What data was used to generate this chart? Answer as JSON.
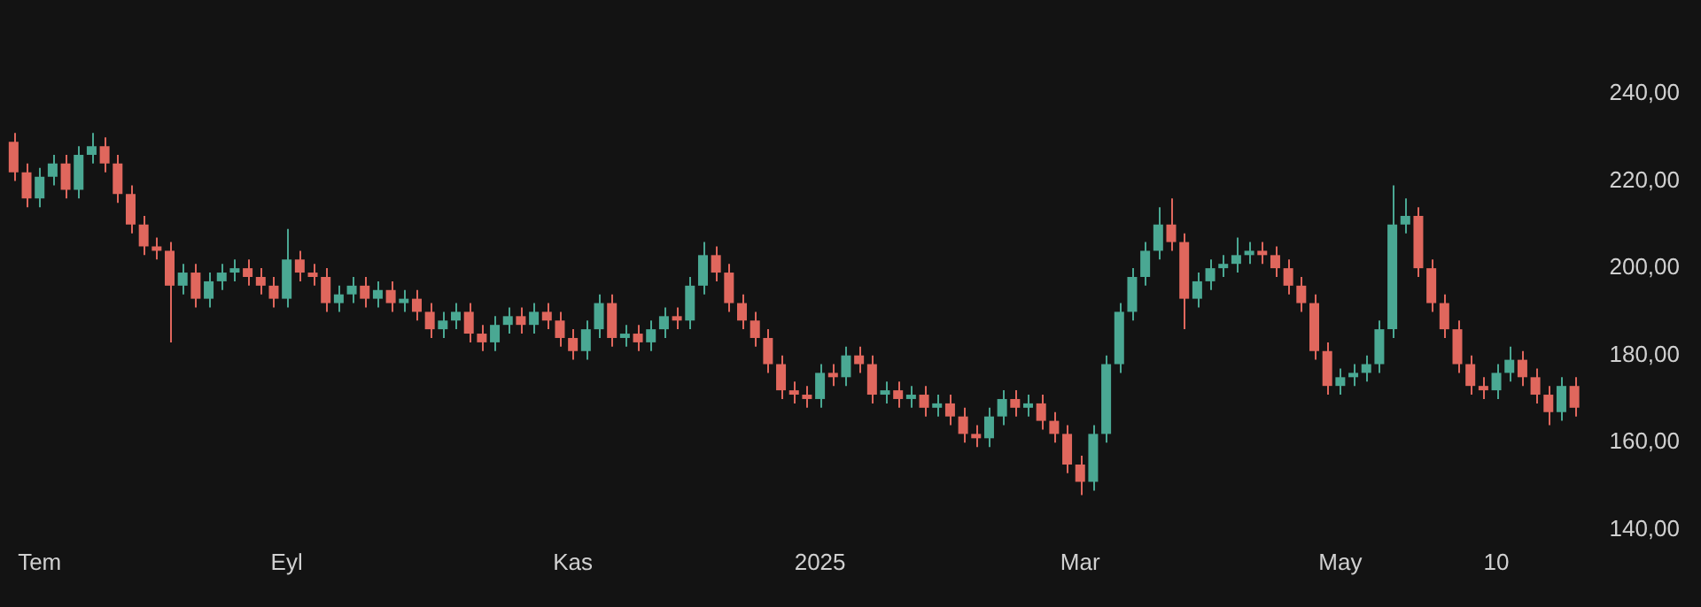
{
  "chart_data": {
    "type": "candlestick",
    "categories": [
      null,
      null,
      "Tem",
      null,
      null,
      null,
      null,
      null,
      null,
      null,
      null,
      null,
      null,
      null,
      null,
      null,
      null,
      null,
      null,
      null,
      null,
      "Eyl",
      null,
      null,
      null,
      null,
      null,
      null,
      null,
      null,
      null,
      null,
      null,
      null,
      null,
      null,
      null,
      null,
      null,
      null,
      null,
      null,
      null,
      "Kas",
      null,
      null,
      null,
      null,
      null,
      null,
      null,
      null,
      null,
      null,
      null,
      null,
      null,
      null,
      null,
      null,
      null,
      null,
      "2025",
      null,
      null,
      null,
      null,
      null,
      null,
      null,
      null,
      null,
      null,
      null,
      null,
      null,
      null,
      null,
      null,
      null,
      null,
      null,
      "Mar",
      null,
      null,
      null,
      null,
      null,
      null,
      null,
      null,
      null,
      null,
      null,
      null,
      null,
      null,
      null,
      null,
      null,
      null,
      null,
      "May",
      null,
      null,
      null,
      null,
      null,
      null,
      null,
      null,
      null,
      null,
      null,
      "10",
      null,
      null,
      null,
      null,
      null,
      null
    ],
    "ohlc": [
      [
        229,
        231,
        220,
        222
      ],
      [
        222,
        224,
        214,
        216
      ],
      [
        216,
        223,
        214,
        221
      ],
      [
        221,
        226,
        219,
        224
      ],
      [
        224,
        226,
        216,
        218
      ],
      [
        218,
        228,
        216,
        226
      ],
      [
        226,
        231,
        224,
        228
      ],
      [
        228,
        230,
        222,
        224
      ],
      [
        224,
        226,
        215,
        217
      ],
      [
        217,
        219,
        208,
        210
      ],
      [
        210,
        212,
        203,
        205
      ],
      [
        205,
        207,
        202,
        204
      ],
      [
        204,
        206,
        183,
        196
      ],
      [
        196,
        201,
        194,
        199
      ],
      [
        199,
        201,
        191,
        193
      ],
      [
        193,
        199,
        191,
        197
      ],
      [
        197,
        201,
        195,
        199
      ],
      [
        199,
        202,
        197,
        200
      ],
      [
        200,
        202,
        196,
        198
      ],
      [
        198,
        200,
        194,
        196
      ],
      [
        196,
        198,
        191,
        193
      ],
      [
        193,
        209,
        191,
        202
      ],
      [
        202,
        204,
        197,
        199
      ],
      [
        199,
        201,
        196,
        198
      ],
      [
        198,
        200,
        190,
        192
      ],
      [
        192,
        196,
        190,
        194
      ],
      [
        194,
        198,
        192,
        196
      ],
      [
        196,
        198,
        191,
        193
      ],
      [
        193,
        197,
        191,
        195
      ],
      [
        195,
        197,
        190,
        192
      ],
      [
        192,
        195,
        190,
        193
      ],
      [
        193,
        195,
        188,
        190
      ],
      [
        190,
        192,
        184,
        186
      ],
      [
        186,
        190,
        184,
        188
      ],
      [
        188,
        192,
        186,
        190
      ],
      [
        190,
        192,
        183,
        185
      ],
      [
        185,
        187,
        181,
        183
      ],
      [
        183,
        189,
        181,
        187
      ],
      [
        187,
        191,
        185,
        189
      ],
      [
        189,
        191,
        185,
        187
      ],
      [
        187,
        192,
        185,
        190
      ],
      [
        190,
        192,
        186,
        188
      ],
      [
        188,
        190,
        182,
        184
      ],
      [
        184,
        186,
        179,
        181
      ],
      [
        181,
        188,
        179,
        186
      ],
      [
        186,
        194,
        184,
        192
      ],
      [
        192,
        194,
        182,
        184
      ],
      [
        184,
        187,
        182,
        185
      ],
      [
        185,
        187,
        181,
        183
      ],
      [
        183,
        188,
        181,
        186
      ],
      [
        186,
        191,
        184,
        189
      ],
      [
        189,
        191,
        186,
        188
      ],
      [
        188,
        198,
        186,
        196
      ],
      [
        196,
        206,
        194,
        203
      ],
      [
        203,
        205,
        197,
        199
      ],
      [
        199,
        201,
        190,
        192
      ],
      [
        192,
        194,
        186,
        188
      ],
      [
        188,
        190,
        182,
        184
      ],
      [
        184,
        186,
        176,
        178
      ],
      [
        178,
        180,
        170,
        172
      ],
      [
        172,
        174,
        169,
        171
      ],
      [
        171,
        173,
        168,
        170
      ],
      [
        170,
        178,
        168,
        176
      ],
      [
        176,
        178,
        173,
        175
      ],
      [
        175,
        182,
        173,
        180
      ],
      [
        180,
        182,
        176,
        178
      ],
      [
        178,
        180,
        169,
        171
      ],
      [
        171,
        174,
        169,
        172
      ],
      [
        172,
        174,
        168,
        170
      ],
      [
        170,
        173,
        168,
        171
      ],
      [
        171,
        173,
        166,
        168
      ],
      [
        168,
        171,
        166,
        169
      ],
      [
        169,
        171,
        164,
        166
      ],
      [
        166,
        168,
        160,
        162
      ],
      [
        162,
        164,
        159,
        161
      ],
      [
        161,
        168,
        159,
        166
      ],
      [
        166,
        172,
        164,
        170
      ],
      [
        170,
        172,
        166,
        168
      ],
      [
        168,
        171,
        166,
        169
      ],
      [
        169,
        171,
        163,
        165
      ],
      [
        165,
        167,
        160,
        162
      ],
      [
        162,
        164,
        153,
        155
      ],
      [
        155,
        157,
        148,
        151
      ],
      [
        151,
        164,
        149,
        162
      ],
      [
        162,
        180,
        160,
        178
      ],
      [
        178,
        192,
        176,
        190
      ],
      [
        190,
        200,
        188,
        198
      ],
      [
        198,
        206,
        196,
        204
      ],
      [
        204,
        214,
        202,
        210
      ],
      [
        210,
        216,
        204,
        206
      ],
      [
        206,
        208,
        186,
        193
      ],
      [
        193,
        199,
        191,
        197
      ],
      [
        197,
        202,
        195,
        200
      ],
      [
        200,
        203,
        198,
        201
      ],
      [
        201,
        207,
        199,
        203
      ],
      [
        203,
        206,
        201,
        204
      ],
      [
        204,
        206,
        201,
        203
      ],
      [
        203,
        205,
        198,
        200
      ],
      [
        200,
        202,
        194,
        196
      ],
      [
        196,
        198,
        190,
        192
      ],
      [
        192,
        194,
        179,
        181
      ],
      [
        181,
        183,
        171,
        173
      ],
      [
        173,
        177,
        171,
        175
      ],
      [
        175,
        178,
        173,
        176
      ],
      [
        176,
        180,
        174,
        178
      ],
      [
        178,
        188,
        176,
        186
      ],
      [
        186,
        219,
        184,
        210
      ],
      [
        210,
        216,
        208,
        212
      ],
      [
        212,
        214,
        198,
        200
      ],
      [
        200,
        202,
        190,
        192
      ],
      [
        192,
        194,
        184,
        186
      ],
      [
        186,
        188,
        176,
        178
      ],
      [
        178,
        180,
        171,
        173
      ],
      [
        173,
        175,
        170,
        172
      ],
      [
        172,
        178,
        170,
        176
      ],
      [
        176,
        182,
        174,
        179
      ],
      [
        179,
        181,
        173,
        175
      ],
      [
        175,
        177,
        169,
        171
      ],
      [
        171,
        173,
        164,
        167
      ],
      [
        167,
        175,
        165,
        173
      ],
      [
        173,
        175,
        166,
        168
      ]
    ],
    "ylim": [
      140,
      240
    ],
    "yticks": [
      {
        "value": 140,
        "label": "140,00"
      },
      {
        "value": 160,
        "label": "160,00"
      },
      {
        "value": 180,
        "label": "180,00"
      },
      {
        "value": 200,
        "label": "200,00"
      },
      {
        "value": 220,
        "label": "220,00"
      },
      {
        "value": 240,
        "label": "240,00"
      }
    ],
    "grid": false,
    "legend": false
  }
}
